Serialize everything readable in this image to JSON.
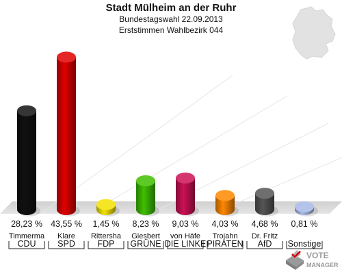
{
  "header": {
    "title": "Stadt Mülheim an der Ruhr",
    "subtitle": "Bundestagswahl 22.09.2013",
    "subtitle2": "Erststimmen Wahlbezirk 044"
  },
  "chart_data": {
    "type": "bar",
    "categories": [
      "CDU",
      "SPD",
      "FDP",
      "GRÜNE",
      "DIE LINKE",
      "PIRATEN",
      "AfD",
      "Sonstige"
    ],
    "candidates": [
      "Timmerma",
      "Klare",
      "Rittersha",
      "Giesbert",
      "von Häfe",
      "Trojahn",
      "Dr. Fritz",
      ""
    ],
    "values": [
      28.23,
      43.55,
      1.45,
      8.23,
      9.03,
      4.03,
      4.68,
      0.81
    ],
    "value_labels": [
      "28,23 %",
      "43,55 %",
      "1,45 %",
      "8,23 %",
      "9,03 %",
      "4,03 %",
      "4,68 %",
      "0,81 %"
    ],
    "colors": [
      "#111111",
      "#e00000",
      "#f2e200",
      "#3fc000",
      "#cc1155",
      "#ff8800",
      "#555555",
      "#a8b8e8"
    ],
    "ylim": [
      0,
      45
    ]
  },
  "watermark": {
    "icon": "ballot-box-icon",
    "line1": "VOTE",
    "line2": "MANAGER"
  }
}
